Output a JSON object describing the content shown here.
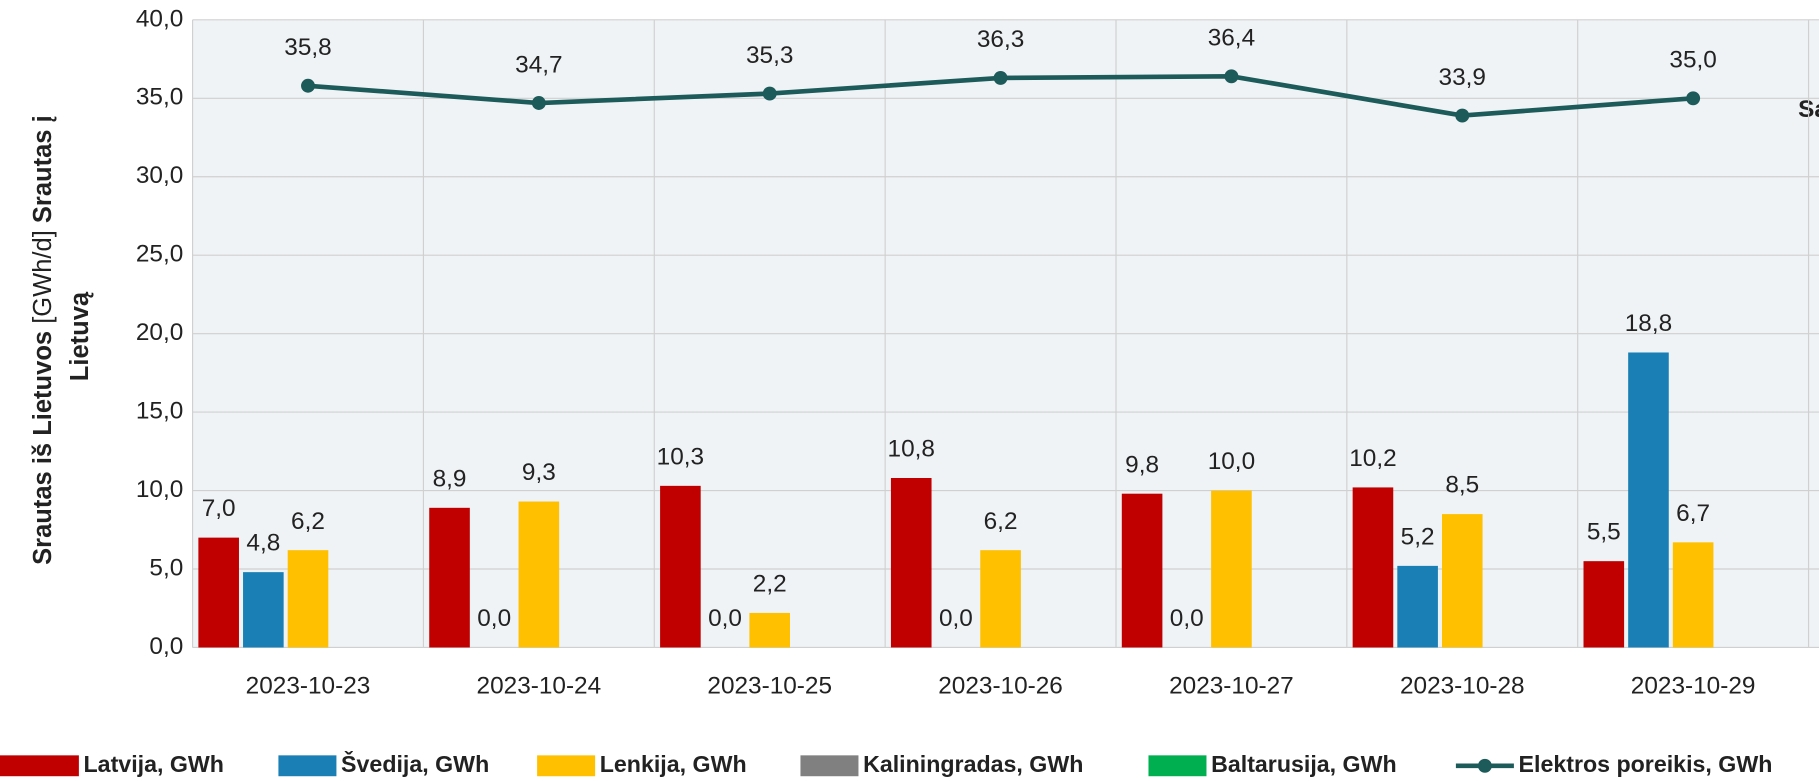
{
  "chart_data": {
    "type": "bar",
    "ylabel": [
      "Srautas iš Lietuvos",
      "[GWh/d]",
      "Srautas į",
      "Lietuvą"
    ],
    "annotation": "Sa",
    "categories": [
      "2023-10-23",
      "2023-10-24",
      "2023-10-25",
      "2023-10-26",
      "2023-10-27",
      "2023-10-28",
      "2023-10-29"
    ],
    "ylim": [
      0,
      40
    ],
    "yticks": [
      {
        "value": 0,
        "label": "0,0"
      },
      {
        "value": 5,
        "label": "5,0"
      },
      {
        "value": 10,
        "label": "10,0"
      },
      {
        "value": 15,
        "label": "15,0"
      },
      {
        "value": 20,
        "label": "20,0"
      },
      {
        "value": 25,
        "label": "25,0"
      },
      {
        "value": 30,
        "label": "30,0"
      },
      {
        "value": 35,
        "label": "35,0"
      },
      {
        "value": 40,
        "label": "40,0"
      }
    ],
    "grid": true,
    "legend": "bottom",
    "series": [
      {
        "name": "Latvija, GWh",
        "type": "bar",
        "color": "#c00000",
        "values": [
          7.0,
          8.9,
          10.3,
          10.8,
          9.8,
          10.2,
          5.5
        ],
        "value_labels": [
          "7,0",
          "8,9",
          "10,3",
          "10,8",
          "9,8",
          "10,2",
          "5,5"
        ]
      },
      {
        "name": "Švedija, GWh",
        "type": "bar",
        "color": "#1a7fb5",
        "values": [
          4.8,
          0,
          0,
          0,
          0,
          5.2,
          18.8
        ],
        "value_labels": [
          "4,8",
          "0,0",
          "0,0",
          "0,0",
          "0,0",
          "5,2",
          "18,8"
        ]
      },
      {
        "name": "Lenkija, GWh",
        "type": "bar",
        "color": "#ffc000",
        "values": [
          6.2,
          9.3,
          2.2,
          6.2,
          10.0,
          8.5,
          6.7
        ],
        "value_labels": [
          "6,2",
          "9,3",
          "2,2",
          "6,2",
          "10,0",
          "8,5",
          "6,7"
        ]
      },
      {
        "name": "Kaliningradas, GWh",
        "type": "bar",
        "color": "#808080",
        "values": [
          null,
          null,
          null,
          null,
          null,
          null,
          null
        ]
      },
      {
        "name": "Baltarusija, GWh",
        "type": "bar",
        "color": "#00b050",
        "values": [
          null,
          null,
          null,
          null,
          null,
          null,
          null
        ]
      },
      {
        "name": "Elektros poreikis, GWh",
        "type": "line",
        "color": "#1d5a5a",
        "values": [
          35.8,
          34.7,
          35.3,
          36.3,
          36.4,
          33.9,
          35.0
        ],
        "value_labels": [
          "35,8",
          "34,7",
          "35,3",
          "36,3",
          "36,4",
          "33,9",
          "35,0"
        ]
      }
    ]
  }
}
